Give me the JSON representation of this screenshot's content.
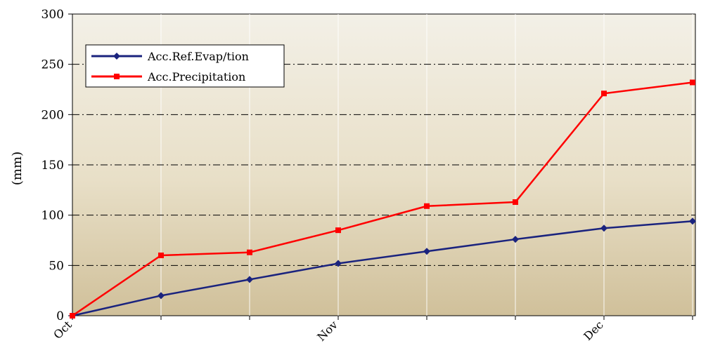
{
  "chart_data": {
    "type": "line",
    "title": "",
    "xlabel": "",
    "ylabel": "(mm)",
    "ylim": [
      0,
      300
    ],
    "yticks": [
      0,
      50,
      100,
      150,
      200,
      250,
      300
    ],
    "x_tick_labels": [
      "Oct",
      "Nov",
      "Dec"
    ],
    "x_points": [
      "Oct 1",
      "Oct 11",
      "Oct 21",
      "Nov 1",
      "Nov 11",
      "Nov 21",
      "Dec 1",
      "Dec 11"
    ],
    "grid": true,
    "grid_style": "dash-dot horizontal, light vertical at each point",
    "background": "gradient beige",
    "legend": {
      "placement": "top-left",
      "entries": [
        "Acc.Ref.Evap/tion",
        "Acc.Precipitation"
      ]
    },
    "series": [
      {
        "name": "Acc.Ref.Evap/tion",
        "color": "#1a237e",
        "marker": "diamond",
        "values": [
          0,
          20,
          36,
          52,
          64,
          76,
          87,
          94
        ]
      },
      {
        "name": "Acc.Precipitation",
        "color": "#ff0000",
        "marker": "square",
        "values": [
          0,
          60,
          63,
          85,
          109,
          113,
          221,
          232
        ]
      }
    ]
  }
}
